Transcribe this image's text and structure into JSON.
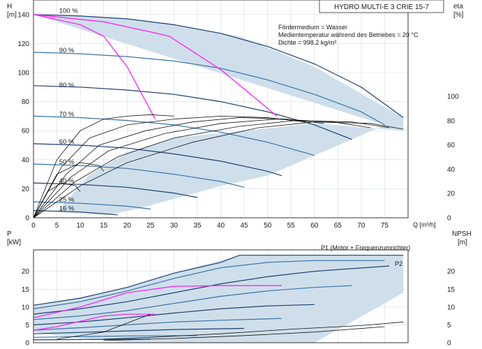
{
  "title_box": "HYDRO MULTI-E 3 CRIE 15-7",
  "info_lines": [
    "Fördermedium = Wasser",
    "Medientemperatur während des Betriebes = 20 °C",
    "Dichte = 998.2 kg/m³"
  ],
  "colors": {
    "zone_fill": "#c9dbe9",
    "curve_dark": "#1c3f73",
    "curve_mid": "#3a73a8",
    "limit_line": "#ff20ff",
    "eta_curve": "#111111",
    "grid": "#d6dde4",
    "axis": "#333333"
  },
  "chart_data": [
    {
      "type": "line",
      "name": "head-curves",
      "ylabel_left": "H",
      "yunit_left": "[m]",
      "ylabel_right": "eta",
      "yunit_right": "[%]",
      "xlabel": "Q [m³/h]",
      "xlim": [
        0,
        80
      ],
      "ylim": [
        0,
        150
      ],
      "x_ticks": [
        0,
        5,
        10,
        15,
        20,
        25,
        30,
        35,
        40,
        45,
        50,
        55,
        60,
        65,
        70,
        75
      ],
      "y_ticks_left": [
        0,
        20,
        40,
        60,
        80,
        100,
        120,
        140
      ],
      "y_ticks_right": [
        0,
        20,
        40,
        60,
        80,
        100
      ],
      "speed_labels": [
        {
          "text": "100 %",
          "x": 2.5,
          "y": 141
        },
        {
          "text": "90 %",
          "x": 2.5,
          "y": 114
        },
        {
          "text": "80 %",
          "x": 2.5,
          "y": 90
        },
        {
          "text": "70 %",
          "x": 2.5,
          "y": 70
        },
        {
          "text": "60 %",
          "x": 2.5,
          "y": 51
        },
        {
          "text": "50 %",
          "x": 2.5,
          "y": 37
        },
        {
          "text": "40 %",
          "x": 2.5,
          "y": 24
        },
        {
          "text": "25 %",
          "x": 2.5,
          "y": 11
        },
        {
          "text": "16 %",
          "x": 2.5,
          "y": 5
        }
      ],
      "series": [
        {
          "points": [
            [
              0,
              140
            ],
            [
              10,
              139
            ],
            [
              20,
              137
            ],
            [
              30,
              133
            ],
            [
              40,
              127
            ],
            [
              50,
              118
            ],
            [
              60,
              106
            ],
            [
              70,
              90
            ],
            [
              79,
              69
            ]
          ]
        },
        {
          "points": [
            [
              0,
              114
            ],
            [
              10,
              113
            ],
            [
              20,
              111
            ],
            [
              30,
              108
            ],
            [
              40,
              103
            ],
            [
              50,
              95
            ],
            [
              60,
              85
            ],
            [
              70,
              73
            ],
            [
              75,
              64
            ]
          ]
        },
        {
          "points": [
            [
              0,
              91
            ],
            [
              10,
              90
            ],
            [
              20,
              88
            ],
            [
              30,
              85
            ],
            [
              40,
              80
            ],
            [
              50,
              73
            ],
            [
              60,
              64
            ],
            [
              68,
              54
            ]
          ]
        },
        {
          "points": [
            [
              0,
              70
            ],
            [
              10,
              69
            ],
            [
              20,
              67
            ],
            [
              30,
              64
            ],
            [
              40,
              59
            ],
            [
              50,
              52
            ],
            [
              60,
              43
            ]
          ]
        },
        {
          "points": [
            [
              0,
              51
            ],
            [
              10,
              50
            ],
            [
              20,
              48
            ],
            [
              30,
              44
            ],
            [
              40,
              39
            ],
            [
              50,
              32
            ],
            [
              53,
              29
            ]
          ]
        },
        {
          "points": [
            [
              0,
              37
            ],
            [
              10,
              36
            ],
            [
              20,
              34
            ],
            [
              30,
              30
            ],
            [
              40,
              25
            ],
            [
              45,
              21
            ]
          ]
        },
        {
          "points": [
            [
              0,
              24
            ],
            [
              10,
              23
            ],
            [
              20,
              21
            ],
            [
              30,
              17
            ],
            [
              35,
              14
            ]
          ]
        },
        {
          "points": [
            [
              0,
              11
            ],
            [
              10,
              10
            ],
            [
              20,
              8
            ],
            [
              25,
              6
            ]
          ]
        },
        {
          "points": [
            [
              0,
              5
            ],
            [
              10,
              4
            ],
            [
              18,
              2
            ]
          ]
        }
      ],
      "limit_lines": [
        {
          "points": [
            [
              0,
              140
            ],
            [
              10,
              133
            ],
            [
              15,
              125
            ],
            [
              20,
              104
            ],
            [
              26,
              68
            ]
          ]
        },
        {
          "points": [
            [
              0,
              140
            ],
            [
              15,
              135
            ],
            [
              25,
              128
            ],
            [
              29,
              125
            ],
            [
              40,
              102
            ],
            [
              52,
              70
            ]
          ]
        }
      ],
      "zone_outline": [
        [
          0,
          140
        ],
        [
          10,
          139
        ],
        [
          20,
          137
        ],
        [
          30,
          133
        ],
        [
          44,
          125
        ],
        [
          60,
          104
        ],
        [
          79,
          69
        ],
        [
          79,
          60
        ],
        [
          60,
          65
        ],
        [
          45,
          60
        ],
        [
          30,
          55
        ],
        [
          20,
          45
        ],
        [
          12,
          30
        ],
        [
          8,
          15
        ],
        [
          5,
          4
        ],
        [
          16,
          2
        ],
        [
          22,
          6
        ],
        [
          30,
          13
        ],
        [
          40,
          22
        ],
        [
          50,
          29
        ],
        [
          60,
          43
        ],
        [
          68,
          54
        ],
        [
          75,
          64
        ]
      ],
      "eta_curves": [
        {
          "points": [
            [
              0,
              0
            ],
            [
              5,
              40
            ],
            [
              10,
              60
            ],
            [
              15,
              68
            ],
            [
              20,
              70
            ],
            [
              25,
              71
            ],
            [
              30,
              70
            ]
          ]
        },
        {
          "points": [
            [
              0,
              0
            ],
            [
              6,
              35
            ],
            [
              12,
              55
            ],
            [
              20,
              64
            ],
            [
              30,
              68
            ],
            [
              40,
              70
            ],
            [
              50,
              69
            ],
            [
              58,
              66
            ]
          ]
        },
        {
          "points": [
            [
              0,
              0
            ],
            [
              7,
              30
            ],
            [
              14,
              50
            ],
            [
              24,
              60
            ],
            [
              34,
              66
            ],
            [
              44,
              69
            ],
            [
              54,
              68
            ],
            [
              62,
              65
            ]
          ]
        },
        {
          "points": [
            [
              0,
              0
            ],
            [
              8,
              28
            ],
            [
              16,
              46
            ],
            [
              28,
              58
            ],
            [
              40,
              65
            ],
            [
              52,
              68
            ],
            [
              64,
              66
            ],
            [
              72,
              62
            ]
          ]
        },
        {
          "points": [
            [
              0,
              0
            ],
            [
              9,
              25
            ],
            [
              18,
              42
            ],
            [
              30,
              55
            ],
            [
              44,
              63
            ],
            [
              56,
              67
            ],
            [
              68,
              66
            ],
            [
              76,
              62
            ]
          ]
        },
        {
          "points": [
            [
              0,
              0
            ],
            [
              10,
              22
            ],
            [
              20,
              38
            ],
            [
              34,
              52
            ],
            [
              48,
              62
            ],
            [
              60,
              66
            ],
            [
              72,
              65
            ],
            [
              79,
              61
            ]
          ]
        },
        {
          "points": [
            [
              0,
              0
            ],
            [
              3,
              18
            ],
            [
              6,
              24
            ],
            [
              9,
              22
            ],
            [
              10,
              18
            ]
          ]
        },
        {
          "points": [
            [
              0,
              0
            ],
            [
              5,
              30
            ],
            [
              10,
              38
            ],
            [
              14,
              36
            ],
            [
              15,
              32
            ]
          ]
        }
      ]
    },
    {
      "type": "line",
      "name": "power-npsh-curves",
      "ylabel_left": "P",
      "yunit_left": "[kW]",
      "ylabel_right": "NPSH",
      "yunit_right": "[m]",
      "xlim": [
        0,
        80
      ],
      "ylim": [
        0,
        26
      ],
      "y_ticks_left": [
        0,
        5,
        10,
        15,
        20
      ],
      "y_ticks_right": [
        0,
        5,
        10,
        15,
        20
      ],
      "p1_label": "P1 (Motor + Frequenzumrichter)",
      "p2_label": "P2",
      "series": [
        {
          "points": [
            [
              0,
              10.5
            ],
            [
              10,
              12.5
            ],
            [
              20,
              15.5
            ],
            [
              30,
              19.5
            ],
            [
              40,
              22.5
            ],
            [
              44,
              24.5
            ],
            [
              60,
              24.5
            ],
            [
              79,
              24.5
            ]
          ]
        },
        {
          "points": [
            [
              0,
              9.5
            ],
            [
              10,
              11.5
            ],
            [
              20,
              14.5
            ],
            [
              30,
              18
            ],
            [
              40,
              21
            ],
            [
              50,
              22.5
            ],
            [
              60,
              23
            ],
            [
              75,
              23
            ]
          ]
        },
        {
          "points": [
            [
              0,
              8
            ],
            [
              10,
              9.5
            ],
            [
              20,
              11.5
            ],
            [
              30,
              14
            ],
            [
              40,
              16.5
            ],
            [
              50,
              18.5
            ],
            [
              60,
              20
            ],
            [
              76,
              21.5
            ]
          ]
        },
        {
          "points": [
            [
              0,
              6.5
            ],
            [
              10,
              7.5
            ],
            [
              20,
              9
            ],
            [
              30,
              11
            ],
            [
              40,
              13
            ],
            [
              50,
              14.5
            ],
            [
              60,
              15.5
            ],
            [
              68,
              16
            ]
          ]
        },
        {
          "points": [
            [
              0,
              5
            ],
            [
              10,
              5.8
            ],
            [
              20,
              7
            ],
            [
              30,
              8.3
            ],
            [
              40,
              9.5
            ],
            [
              50,
              10.3
            ],
            [
              60,
              10.7
            ]
          ]
        },
        {
          "points": [
            [
              0,
              3.5
            ],
            [
              10,
              4.2
            ],
            [
              20,
              5
            ],
            [
              30,
              5.8
            ],
            [
              40,
              6.3
            ],
            [
              53,
              6.8
            ]
          ]
        },
        {
          "points": [
            [
              0,
              2.5
            ],
            [
              10,
              2.9
            ],
            [
              20,
              3.3
            ],
            [
              30,
              3.7
            ],
            [
              45,
              4
            ]
          ]
        },
        {
          "points": [
            [
              0,
              1.5
            ],
            [
              10,
              1.7
            ],
            [
              20,
              1.9
            ],
            [
              35,
              2
            ]
          ]
        },
        {
          "points": [
            [
              0,
              0.8
            ],
            [
              10,
              0.9
            ],
            [
              25,
              1
            ]
          ]
        }
      ],
      "limit_lines": [
        {
          "points": [
            [
              0,
              3.5
            ],
            [
              5,
              4.5
            ],
            [
              10,
              6
            ],
            [
              15,
              7.5
            ],
            [
              20,
              8
            ],
            [
              26,
              8
            ]
          ]
        },
        {
          "points": [
            [
              0,
              7
            ],
            [
              10,
              10
            ],
            [
              15,
              12
            ],
            [
              20,
              14
            ],
            [
              30,
              15.8
            ],
            [
              40,
              16
            ],
            [
              53,
              16
            ]
          ]
        }
      ],
      "npsh_curves": [
        {
          "points": [
            [
              15,
              1
            ],
            [
              25,
              1.5
            ],
            [
              40,
              2.5
            ],
            [
              55,
              3.8
            ],
            [
              70,
              4.8
            ],
            [
              79,
              5.8
            ]
          ]
        },
        {
          "points": [
            [
              15,
              0.6
            ],
            [
              30,
              1.2
            ],
            [
              45,
              2
            ],
            [
              60,
              3
            ],
            [
              75,
              4.5
            ]
          ]
        },
        {
          "points": [
            [
              5,
              1
            ],
            [
              15,
              3
            ],
            [
              20,
              5.5
            ],
            [
              25,
              8
            ]
          ]
        }
      ],
      "zone_outline": [
        [
          0,
          10.5
        ],
        [
          10,
          12.5
        ],
        [
          20,
          15.5
        ],
        [
          30,
          19.5
        ],
        [
          44,
          24.5
        ],
        [
          79,
          24.5
        ],
        [
          79,
          14
        ],
        [
          60,
          0
        ],
        [
          20,
          0
        ],
        [
          5,
          2
        ],
        [
          0,
          3
        ]
      ]
    }
  ]
}
